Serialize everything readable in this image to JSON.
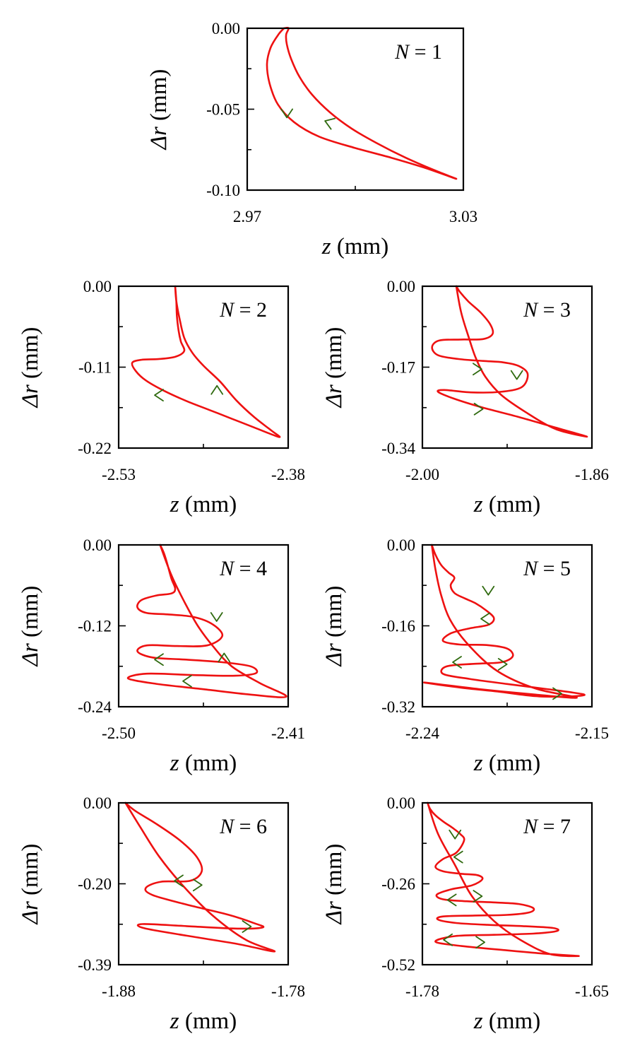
{
  "colors": {
    "curve": "#ee1111",
    "arrow": "#2f6a0f",
    "axis": "#000000"
  },
  "chart_data": [
    {
      "type": "line",
      "panel": "top-center",
      "n_label": "1",
      "xlabel": "z (mm)",
      "ylabel": "Δr (mm)",
      "xlim": [
        2.97,
        3.03
      ],
      "ylim": [
        -0.1,
        0.0
      ],
      "xticklabels": [
        "2.97",
        "3.03"
      ],
      "yticklabels": [
        "0.00",
        "-0.05",
        "-0.10"
      ],
      "series": [
        {
          "name": "trajectory",
          "x": [
            2.9802,
            2.9786,
            2.9765,
            2.9755,
            2.9762,
            2.9785,
            2.983,
            2.99,
            3.0,
            3.01,
            3.019,
            3.028,
            3.0223,
            3.014,
            3.006,
            2.999,
            2.993,
            2.988,
            2.9845,
            2.9822,
            2.981,
            2.9808,
            2.9815,
            2.9802
          ],
          "y": [
            0.0,
            -0.004,
            -0.012,
            -0.022,
            -0.034,
            -0.047,
            -0.058,
            -0.067,
            -0.074,
            -0.08,
            -0.086,
            -0.093,
            -0.088,
            -0.08,
            -0.071,
            -0.062,
            -0.052,
            -0.041,
            -0.03,
            -0.019,
            -0.01,
            -0.004,
            0.0,
            0.0
          ]
        }
      ],
      "arrows": [
        {
          "x": 2.981,
          "y": -0.053,
          "dir": "down"
        },
        {
          "x": 2.9925,
          "y": -0.058,
          "dir": "up-left"
        }
      ]
    },
    {
      "type": "line",
      "panel": "row1-left",
      "n_label": "2",
      "xlabel": "z (mm)",
      "ylabel": "Δr (mm)",
      "xlim": [
        -2.53,
        -2.38
      ],
      "ylim": [
        -0.22,
        0.0
      ],
      "xticklabels": [
        "-2.53",
        "-2.38"
      ],
      "yticklabels": [
        "0.00",
        "-0.11",
        "-0.22"
      ],
      "series": [
        {
          "name": "trajectory",
          "x": [
            -2.48,
            -2.479,
            -2.4785,
            -2.477,
            -2.475,
            -2.472,
            -2.48,
            -2.495,
            -2.51,
            -2.518,
            -2.515,
            -2.506,
            -2.49,
            -2.47,
            -2.45,
            -2.43,
            -2.41,
            -2.388,
            -2.395,
            -2.41,
            -2.426,
            -2.44,
            -2.455,
            -2.465,
            -2.472,
            -2.476,
            -2.479,
            -2.48
          ],
          "y": [
            0.0,
            -0.02,
            -0.04,
            -0.06,
            -0.075,
            -0.088,
            -0.096,
            -0.099,
            -0.1,
            -0.104,
            -0.115,
            -0.128,
            -0.142,
            -0.156,
            -0.168,
            -0.18,
            -0.192,
            -0.205,
            -0.196,
            -0.178,
            -0.155,
            -0.13,
            -0.108,
            -0.09,
            -0.07,
            -0.045,
            -0.02,
            0.0
          ]
        }
      ],
      "arrows": [
        {
          "x": -2.495,
          "y": -0.148,
          "dir": "left"
        },
        {
          "x": -2.443,
          "y": -0.14,
          "dir": "up"
        }
      ]
    },
    {
      "type": "line",
      "panel": "row1-right",
      "n_label": "3",
      "xlabel": "z (mm)",
      "ylabel": "Δr (mm)",
      "xlim": [
        -2.0,
        -1.86
      ],
      "ylim": [
        -0.34,
        0.0
      ],
      "xticklabels": [
        "-2.00",
        "-1.86"
      ],
      "yticklabels": [
        "0.00",
        "-0.17",
        "-0.34"
      ],
      "series": [
        {
          "name": "trajectory",
          "x": [
            -1.972,
            -1.969,
            -1.962,
            -1.952,
            -1.944,
            -1.942,
            -1.95,
            -1.968,
            -1.986,
            -1.992,
            -1.987,
            -1.97,
            -1.95,
            -1.933,
            -1.92,
            -1.913,
            -1.918,
            -1.936,
            -1.96,
            -1.982,
            -1.987,
            -1.974,
            -1.95,
            -1.92,
            -1.89,
            -1.864,
            -1.89,
            -1.915,
            -1.935,
            -1.948,
            -1.956,
            -1.962,
            -1.968,
            -1.972
          ],
          "y": [
            0.0,
            -0.012,
            -0.032,
            -0.055,
            -0.08,
            -0.1,
            -0.111,
            -0.112,
            -0.114,
            -0.128,
            -0.145,
            -0.153,
            -0.157,
            -0.16,
            -0.168,
            -0.185,
            -0.212,
            -0.222,
            -0.223,
            -0.218,
            -0.222,
            -0.236,
            -0.255,
            -0.275,
            -0.297,
            -0.316,
            -0.3,
            -0.264,
            -0.228,
            -0.19,
            -0.15,
            -0.105,
            -0.055,
            0.0
          ]
        }
      ],
      "arrows": [
        {
          "x": -1.954,
          "y": -0.174,
          "dir": "right"
        },
        {
          "x": -1.922,
          "y": -0.188,
          "dir": "down"
        },
        {
          "x": -1.953,
          "y": -0.258,
          "dir": "right"
        }
      ]
    },
    {
      "type": "line",
      "panel": "row2-left",
      "n_label": "4",
      "xlabel": "z (mm)",
      "ylabel": "Δr (mm)",
      "xlim": [
        -2.5,
        -2.41
      ],
      "ylim": [
        -0.24,
        0.0
      ],
      "xticklabels": [
        "-2.50",
        "-2.41"
      ],
      "yticklabels": [
        "0.00",
        "-0.12",
        "-0.24"
      ],
      "series": [
        {
          "name": "trajectory",
          "x": [
            -2.478,
            -2.476,
            -2.474,
            -2.472,
            -2.47,
            -2.472,
            -2.48,
            -2.488,
            -2.49,
            -2.485,
            -2.474,
            -2.46,
            -2.45,
            -2.445,
            -2.453,
            -2.469,
            -2.485,
            -2.49,
            -2.482,
            -2.465,
            -2.445,
            -2.43,
            -2.427,
            -2.438,
            -2.46,
            -2.485,
            -2.495,
            -2.48,
            -2.455,
            -2.43,
            -2.411,
            -2.425,
            -2.44,
            -2.45,
            -2.458,
            -2.465,
            -2.472,
            -2.478
          ],
          "y": [
            0.0,
            -0.012,
            -0.03,
            -0.05,
            -0.065,
            -0.072,
            -0.075,
            -0.082,
            -0.093,
            -0.101,
            -0.103,
            -0.107,
            -0.118,
            -0.135,
            -0.149,
            -0.15,
            -0.149,
            -0.158,
            -0.167,
            -0.17,
            -0.174,
            -0.18,
            -0.19,
            -0.194,
            -0.193,
            -0.191,
            -0.198,
            -0.206,
            -0.214,
            -0.222,
            -0.225,
            -0.205,
            -0.18,
            -0.15,
            -0.12,
            -0.085,
            -0.045,
            0.0
          ]
        }
      ],
      "arrows": [
        {
          "x": -2.448,
          "y": -0.108,
          "dir": "down"
        },
        {
          "x": -2.479,
          "y": -0.17,
          "dir": "left"
        },
        {
          "x": -2.444,
          "y": -0.166,
          "dir": "up"
        },
        {
          "x": -2.464,
          "y": -0.202,
          "dir": "left"
        }
      ]
    },
    {
      "type": "line",
      "panel": "row2-right",
      "n_label": "5",
      "xlabel": "z (mm)",
      "ylabel": "Δr (mm)",
      "xlim": [
        -2.24,
        -2.15
      ],
      "ylim": [
        -0.32,
        0.0
      ],
      "xticklabels": [
        "-2.24",
        "-2.15"
      ],
      "yticklabels": [
        "0.00",
        "-0.16",
        "-0.32"
      ],
      "series": [
        {
          "name": "trajectory",
          "x": [
            -2.235,
            -2.233,
            -2.23,
            -2.226,
            -2.223,
            -2.225,
            -2.223,
            -2.218,
            -2.212,
            -2.206,
            -2.202,
            -2.205,
            -2.215,
            -2.225,
            -2.229,
            -2.22,
            -2.206,
            -2.195,
            -2.192,
            -2.198,
            -2.212,
            -2.227,
            -2.229,
            -2.215,
            -2.195,
            -2.174,
            -2.16,
            -2.154,
            -2.165,
            -2.18,
            -2.2,
            -2.22,
            -2.239,
            -2.21,
            -2.18,
            -2.158,
            -2.18,
            -2.2,
            -2.215,
            -2.225,
            -2.23,
            -2.233,
            -2.235
          ],
          "y": [
            0.0,
            -0.02,
            -0.04,
            -0.055,
            -0.065,
            -0.08,
            -0.095,
            -0.105,
            -0.115,
            -0.13,
            -0.145,
            -0.158,
            -0.165,
            -0.175,
            -0.19,
            -0.197,
            -0.198,
            -0.205,
            -0.22,
            -0.232,
            -0.235,
            -0.24,
            -0.255,
            -0.265,
            -0.275,
            -0.285,
            -0.292,
            -0.297,
            -0.3,
            -0.299,
            -0.29,
            -0.282,
            -0.272,
            -0.285,
            -0.296,
            -0.302,
            -0.284,
            -0.25,
            -0.2,
            -0.15,
            -0.1,
            -0.05,
            0.0
          ]
        }
      ],
      "arrows": [
        {
          "x": -2.205,
          "y": -0.092,
          "dir": "down"
        },
        {
          "x": -2.207,
          "y": -0.146,
          "dir": "left"
        },
        {
          "x": -2.222,
          "y": -0.232,
          "dir": "left"
        },
        {
          "x": -2.197,
          "y": -0.236,
          "dir": "right"
        },
        {
          "x": -2.168,
          "y": -0.294,
          "dir": "right"
        }
      ]
    },
    {
      "type": "line",
      "panel": "row3-left",
      "n_label": "6",
      "xlabel": "z (mm)",
      "ylabel": "Δr (mm)",
      "xlim": [
        -1.88,
        -1.78
      ],
      "ylim": [
        -0.39,
        0.0
      ],
      "xticklabels": [
        "-1.88",
        "-1.78"
      ],
      "yticklabels": [
        "0.00",
        "-0.20",
        "-0.39"
      ],
      "series": [
        {
          "name": "trajectory",
          "x": [
            -1.876,
            -1.87,
            -1.858,
            -1.844,
            -1.834,
            -1.831,
            -1.838,
            -1.855,
            -1.864,
            -1.86,
            -1.84,
            -1.815,
            -1.8,
            -1.795,
            -1.81,
            -1.84,
            -1.866,
            -1.865,
            -1.84,
            -1.81,
            -1.788,
            -1.805,
            -1.825,
            -1.842,
            -1.856,
            -1.867,
            -1.876
          ],
          "y": [
            0.0,
            -0.02,
            -0.05,
            -0.09,
            -0.13,
            -0.165,
            -0.188,
            -0.19,
            -0.205,
            -0.222,
            -0.245,
            -0.27,
            -0.29,
            -0.3,
            -0.303,
            -0.297,
            -0.292,
            -0.302,
            -0.32,
            -0.34,
            -0.358,
            -0.33,
            -0.27,
            -0.2,
            -0.13,
            -0.06,
            0.0
          ]
        }
      ],
      "arrows": [
        {
          "x": -1.845,
          "y": -0.188,
          "dir": "left"
        },
        {
          "x": -1.833,
          "y": -0.198,
          "dir": "right"
        },
        {
          "x": -1.804,
          "y": -0.298,
          "dir": "right"
        }
      ]
    },
    {
      "type": "line",
      "panel": "row3-right",
      "n_label": "7",
      "xlabel": "z (mm)",
      "ylabel": "Δr (mm)",
      "xlim": [
        -1.78,
        -1.65
      ],
      "ylim": [
        -0.52,
        0.0
      ],
      "xticklabels": [
        "-1.78",
        "-1.65"
      ],
      "yticklabels": [
        "0.00",
        "-0.26",
        "-0.52"
      ],
      "series": [
        {
          "name": "trajectory",
          "x": [
            -1.776,
            -1.774,
            -1.77,
            -1.764,
            -1.757,
            -1.751,
            -1.748,
            -1.754,
            -1.764,
            -1.77,
            -1.764,
            -1.75,
            -1.738,
            -1.734,
            -1.742,
            -1.758,
            -1.769,
            -1.764,
            -1.746,
            -1.724,
            -1.706,
            -1.695,
            -1.698,
            -1.715,
            -1.74,
            -1.764,
            -1.768,
            -1.754,
            -1.73,
            -1.703,
            -1.68,
            -1.677,
            -1.695,
            -1.725,
            -1.755,
            -1.77,
            -1.75,
            -1.715,
            -1.685,
            -1.66,
            -1.682,
            -1.705,
            -1.725,
            -1.742,
            -1.755,
            -1.768,
            -1.776
          ],
          "y": [
            0.0,
            -0.02,
            -0.04,
            -0.06,
            -0.08,
            -0.1,
            -0.12,
            -0.16,
            -0.18,
            -0.205,
            -0.22,
            -0.228,
            -0.232,
            -0.245,
            -0.265,
            -0.278,
            -0.295,
            -0.31,
            -0.316,
            -0.32,
            -0.325,
            -0.338,
            -0.352,
            -0.36,
            -0.362,
            -0.365,
            -0.375,
            -0.386,
            -0.392,
            -0.396,
            -0.402,
            -0.412,
            -0.42,
            -0.424,
            -0.428,
            -0.446,
            -0.46,
            -0.474,
            -0.485,
            -0.492,
            -0.486,
            -0.44,
            -0.38,
            -0.3,
            -0.2,
            -0.1,
            0.0
          ]
        }
      ],
      "arrows": [
        {
          "x": -1.755,
          "y": -0.104,
          "dir": "down"
        },
        {
          "x": -1.753,
          "y": -0.174,
          "dir": "left"
        },
        {
          "x": -1.758,
          "y": -0.312,
          "dir": "left"
        },
        {
          "x": -1.737,
          "y": -0.3,
          "dir": "right"
        },
        {
          "x": -1.761,
          "y": -0.44,
          "dir": "left"
        },
        {
          "x": -1.735,
          "y": -0.448,
          "dir": "right"
        }
      ]
    }
  ]
}
